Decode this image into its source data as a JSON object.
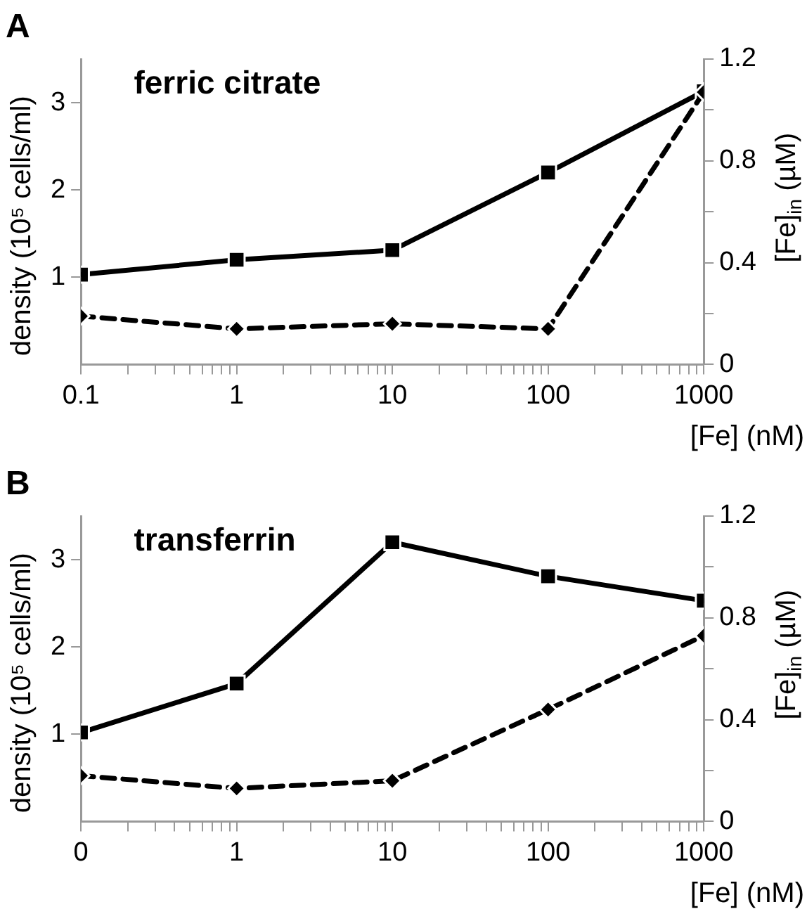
{
  "chart_data": [
    {
      "type": "line",
      "title": "ferric citrate",
      "annotations": [
        "A"
      ],
      "xlabel": "[Fe] (nM)",
      "ylabel": "density (10⁵ cells/ml)",
      "y2label": "[Fe]$_{in}$ (µM)",
      "log": "x",
      "grid": false,
      "x": [
        0.1,
        1,
        10,
        100,
        1000
      ],
      "xlim": [
        0.1,
        1000
      ],
      "xticks": [
        0.1,
        {
          "value": 0.2,
          "label": null
        },
        {
          "value": 0.3,
          "label": null
        },
        {
          "value": 0.4,
          "label": null
        },
        {
          "value": 0.5,
          "label": null
        },
        {
          "value": 0.6,
          "label": null
        },
        {
          "value": 0.7,
          "label": null
        },
        {
          "value": 0.8,
          "label": null
        },
        {
          "value": 0.9,
          "label": null
        },
        1,
        {
          "value": 2,
          "label": null
        },
        {
          "value": 3,
          "label": null
        },
        {
          "value": 4,
          "label": null
        },
        {
          "value": 5,
          "label": null
        },
        {
          "value": 6,
          "label": null
        },
        {
          "value": 7,
          "label": null
        },
        {
          "value": 8,
          "label": null
        },
        {
          "value": 9,
          "label": null
        },
        10,
        {
          "value": 20,
          "label": null
        },
        {
          "value": 30,
          "label": null
        },
        {
          "value": 40,
          "label": null
        },
        {
          "value": 50,
          "label": null
        },
        {
          "value": 60,
          "label": null
        },
        {
          "value": 70,
          "label": null
        },
        {
          "value": 80,
          "label": null
        },
        {
          "value": 90,
          "label": null
        },
        100,
        {
          "value": 200,
          "label": null
        },
        {
          "value": 300,
          "label": null
        },
        {
          "value": 400,
          "label": null
        },
        {
          "value": 500,
          "label": null
        },
        {
          "value": 600,
          "label": null
        },
        {
          "value": 700,
          "label": null
        },
        {
          "value": 800,
          "label": null
        },
        {
          "value": 900,
          "label": null
        },
        1000
      ],
      "ylim": [
        0,
        3.5
      ],
      "yticks": [
        1,
        2,
        3
      ],
      "y2lim": [
        0,
        1.2
      ],
      "y2ticks": [
        0,
        {
          "value": 0.2,
          "label": null
        },
        0.4,
        {
          "value": 0.6,
          "label": null
        },
        0.8,
        {
          "value": 1,
          "label": null
        },
        1.2
      ],
      "series": [
        {
          "type": "line",
          "color": "#000000",
          "marker": "square",
          "line_style": "solid",
          "values": [
            1.03,
            1.2,
            1.31,
            2.2,
            3.13
          ]
        },
        {
          "type": "line",
          "color": "#000000",
          "marker": "diamond",
          "line_style": "dashed",
          "axis": "y2",
          "values": [
            0.19,
            0.14,
            0.16,
            0.14,
            1.07
          ]
        }
      ]
    },
    {
      "type": "line",
      "title": "transferrin",
      "annotations": [
        "B"
      ],
      "xlabel": "[Fe] (nM)",
      "ylabel": "density (10⁵ cells/ml)",
      "y2label": "[Fe]$_{in}$ (µM)",
      "log": "x",
      "grid": false,
      "x": [
        0.1,
        1,
        10,
        100,
        1000
      ],
      "xlim": [
        0.1,
        1000
      ],
      "xticks": [
        {
          "value": 0.1,
          "label": "0"
        },
        {
          "value": 0.2,
          "label": null
        },
        {
          "value": 0.3,
          "label": null
        },
        {
          "value": 0.4,
          "label": null
        },
        {
          "value": 0.5,
          "label": null
        },
        {
          "value": 0.6,
          "label": null
        },
        {
          "value": 0.7,
          "label": null
        },
        {
          "value": 0.8,
          "label": null
        },
        {
          "value": 0.9,
          "label": null
        },
        1,
        {
          "value": 2,
          "label": null
        },
        {
          "value": 3,
          "label": null
        },
        {
          "value": 4,
          "label": null
        },
        {
          "value": 5,
          "label": null
        },
        {
          "value": 6,
          "label": null
        },
        {
          "value": 7,
          "label": null
        },
        {
          "value": 8,
          "label": null
        },
        {
          "value": 9,
          "label": null
        },
        10,
        {
          "value": 20,
          "label": null
        },
        {
          "value": 30,
          "label": null
        },
        {
          "value": 40,
          "label": null
        },
        {
          "value": 50,
          "label": null
        },
        {
          "value": 60,
          "label": null
        },
        {
          "value": 70,
          "label": null
        },
        {
          "value": 80,
          "label": null
        },
        {
          "value": 90,
          "label": null
        },
        100,
        {
          "value": 200,
          "label": null
        },
        {
          "value": 300,
          "label": null
        },
        {
          "value": 400,
          "label": null
        },
        {
          "value": 500,
          "label": null
        },
        {
          "value": 600,
          "label": null
        },
        {
          "value": 700,
          "label": null
        },
        {
          "value": 800,
          "label": null
        },
        {
          "value": 900,
          "label": null
        },
        1000
      ],
      "ylim": [
        0,
        3.5
      ],
      "yticks": [
        1,
        2,
        3
      ],
      "y2lim": [
        0,
        1.2
      ],
      "y2ticks": [
        0,
        {
          "value": 0.2,
          "label": null
        },
        0.4,
        {
          "value": 0.6,
          "label": null
        },
        0.8,
        {
          "value": 1,
          "label": null
        },
        1.2
      ],
      "series": [
        {
          "type": "line",
          "color": "#000000",
          "marker": "square",
          "line_style": "solid",
          "values": [
            1.02,
            1.58,
            3.2,
            2.81,
            2.53
          ]
        },
        {
          "type": "line",
          "color": "#000000",
          "marker": "diamond",
          "line_style": "dashed",
          "axis": "y2",
          "values": [
            0.18,
            0.13,
            0.16,
            0.44,
            0.73
          ]
        }
      ]
    }
  ]
}
